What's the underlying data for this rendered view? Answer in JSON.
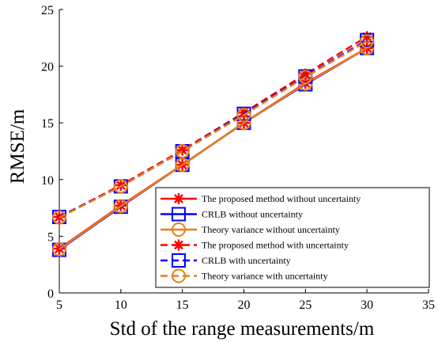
{
  "chart_data": {
    "type": "line",
    "xlabel": "Std of the range measurements/m",
    "ylabel": "RMSE/m",
    "xlim": [
      5,
      35
    ],
    "ylim": [
      0,
      25
    ],
    "xticks": [
      5,
      10,
      15,
      20,
      25,
      30,
      35
    ],
    "yticks": [
      0,
      5,
      10,
      15,
      20,
      25
    ],
    "grid": false,
    "legend_position": "bottom-right",
    "x": [
      5,
      10,
      15,
      20,
      25,
      30
    ],
    "series": [
      {
        "name": "The proposed method without uncertainty",
        "color": "#ff0000",
        "dash": "solid",
        "marker": "asterisk",
        "values": [
          3.9,
          7.7,
          11.3,
          15.0,
          18.5,
          21.6
        ]
      },
      {
        "name": "CRLB without uncertainty",
        "color": "#0000ff",
        "dash": "solid",
        "marker": "square",
        "values": [
          3.8,
          7.6,
          11.3,
          15.0,
          18.4,
          21.6
        ]
      },
      {
        "name": "Theory variance without uncertainty",
        "color": "#e67e1a",
        "dash": "solid",
        "marker": "circle",
        "values": [
          3.85,
          7.65,
          11.3,
          15.0,
          18.45,
          21.6
        ]
      },
      {
        "name": "The proposed method with uncertainty",
        "color": "#ff0000",
        "dash": "dashed",
        "marker": "asterisk",
        "values": [
          6.7,
          9.5,
          12.6,
          15.9,
          19.3,
          22.6
        ]
      },
      {
        "name": "CRLB with uncertainty",
        "color": "#0000ff",
        "dash": "dashed",
        "marker": "square",
        "values": [
          6.7,
          9.4,
          12.5,
          15.8,
          19.1,
          22.3
        ]
      },
      {
        "name": "Theory variance with uncertainty",
        "color": "#e67e1a",
        "dash": "dashed",
        "marker": "circle",
        "values": [
          6.65,
          9.4,
          12.5,
          15.7,
          19.05,
          22.2
        ]
      }
    ]
  }
}
